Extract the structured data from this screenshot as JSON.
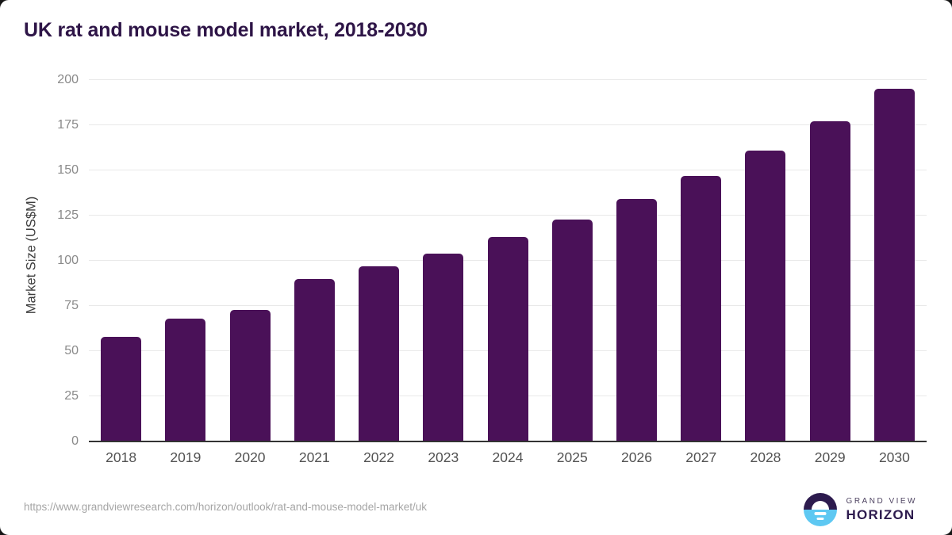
{
  "page": {
    "title": "UK rat and mouse model market, 2018-2030"
  },
  "chart_data": {
    "type": "bar",
    "title": "UK rat and mouse model market, 2018-2030",
    "categories": [
      "2018",
      "2019",
      "2020",
      "2021",
      "2022",
      "2023",
      "2024",
      "2025",
      "2026",
      "2027",
      "2028",
      "2029",
      "2030"
    ],
    "values": [
      58,
      68,
      73,
      90,
      97,
      104,
      113,
      123,
      134,
      147,
      161,
      177,
      195
    ],
    "xlabel": "",
    "ylabel": "Market Size (US$M)",
    "ylim": [
      0,
      200
    ],
    "yticks": [
      0,
      25,
      50,
      75,
      100,
      125,
      150,
      175,
      200
    ],
    "grid": "horizontal",
    "legend": "none",
    "bar_color": "#4a1158"
  },
  "footer": {
    "source_url": "https://www.grandviewresearch.com/horizon/outlook/rat-and-mouse-model-market/uk",
    "logo": {
      "line1": "GRAND VIEW",
      "line2": "HORIZON"
    }
  },
  "colors": {
    "bar": "#4a1158",
    "title_text": "#2e1547",
    "axis_line": "#333333",
    "gridline": "#e9e9e9",
    "ytick_text": "#8a8a8a",
    "xtick_text": "#525252",
    "url_text": "#a5a5a5",
    "logo_dark": "#2d1b4e",
    "logo_blue": "#5ec8f2"
  }
}
